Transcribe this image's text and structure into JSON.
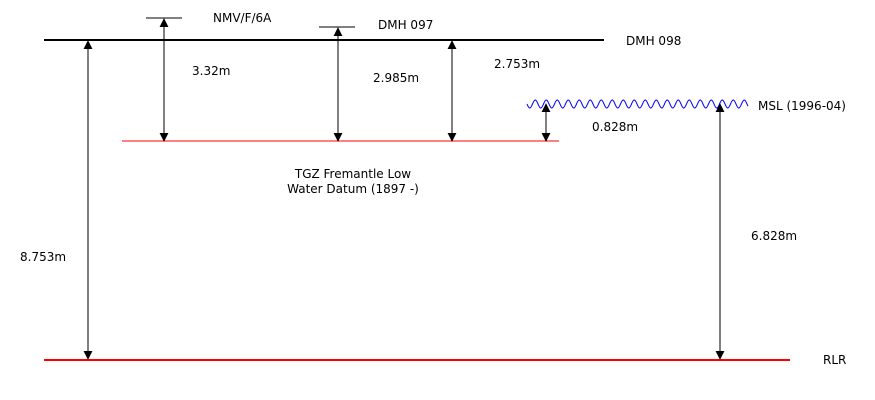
{
  "levels": {
    "nmv": "NMV/F/6A",
    "dmh097": "DMH 097",
    "dmh098": "DMH 098",
    "msl": "MSL (1996-04)",
    "tgz_line1": "TGZ Fremantle Low",
    "tgz_line2": "Water Datum (1897 -)",
    "rlr": "RLR"
  },
  "distances": {
    "dmh098_to_rlr": "8.753m",
    "nmv_to_tgz": "3.32m",
    "dmh097_to_tgz": "2.985m",
    "dmh098_to_tgz": "2.753m",
    "msl_to_tgz": "0.828m",
    "msl_to_rlr": "6.828m"
  },
  "colors": {
    "benchmark_line": "#000000",
    "datum_line": "#ff0000",
    "sea_level": "#0000ff"
  }
}
